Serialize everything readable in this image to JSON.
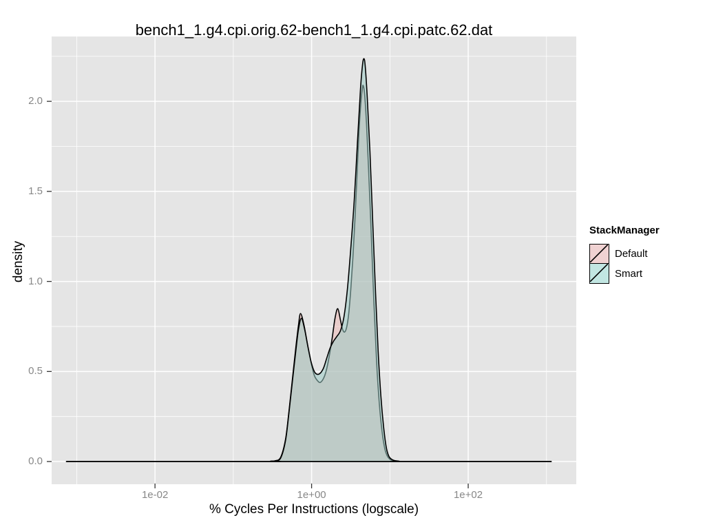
{
  "chart_data": {
    "type": "area",
    "title": "bench1_1.g4.cpi.orig.62-bench1_1.g4.cpi.patc.62.dat",
    "xlabel": "% Cycles Per Instructions (logscale)",
    "ylabel": "density",
    "x_scale": "log10",
    "xlim_log10": [
      -3.32,
      3.38
    ],
    "ylim": [
      -0.126,
      2.36
    ],
    "grid": true,
    "panel_background": "#E5E5E5",
    "grid_color": "#FFFFFF",
    "axis_text_color": "#878787",
    "tick_mark_color": "#333333",
    "x_major_ticks": [
      {
        "value": 0.01,
        "label": "1e-02"
      },
      {
        "value": 1,
        "label": "1e+00"
      },
      {
        "value": 100,
        "label": "1e+02"
      }
    ],
    "x_minor_ticks": [
      0.001,
      0.1,
      10,
      1000
    ],
    "y_major_ticks": [
      {
        "value": 0,
        "label": "0.0"
      },
      {
        "value": 0.5,
        "label": "0.5"
      },
      {
        "value": 1,
        "label": "1.0"
      },
      {
        "value": 1.5,
        "label": "1.5"
      },
      {
        "value": 2,
        "label": "2.0"
      }
    ],
    "y_minor_ticks": [
      0.25,
      0.75,
      1.25,
      1.75,
      2.25
    ],
    "legend": {
      "title": "StackManager",
      "position": "right",
      "entries": [
        {
          "label": "Default",
          "key_fill": "#F0D2D2"
        },
        {
          "label": "Smart",
          "key_fill": "#C2E6E2"
        }
      ]
    },
    "series": [
      {
        "name": "Default",
        "fill": "#EDB5B1",
        "fill_opacity": 0.5,
        "stroke": "#000000",
        "points": [
          [
            0.00074,
            0
          ],
          [
            0.25,
            0
          ],
          [
            0.3,
            0.002
          ],
          [
            0.342,
            0.004
          ],
          [
            0.402,
            0.023
          ],
          [
            0.464,
            0.122
          ],
          [
            0.513,
            0.275
          ],
          [
            0.567,
            0.451
          ],
          [
            0.628,
            0.631
          ],
          [
            0.68,
            0.757
          ],
          [
            0.723,
            0.822
          ],
          [
            0.8,
            0.757
          ],
          [
            0.886,
            0.65
          ],
          [
            0.98,
            0.554
          ],
          [
            1.084,
            0.478
          ],
          [
            1.2,
            0.447
          ],
          [
            1.301,
            0.44
          ],
          [
            1.44,
            0.467
          ],
          [
            1.561,
            0.516
          ],
          [
            1.693,
            0.593
          ],
          [
            1.836,
            0.688
          ],
          [
            1.99,
            0.795
          ],
          [
            2.158,
            0.849
          ],
          [
            2.34,
            0.784
          ],
          [
            2.486,
            0.734
          ],
          [
            2.641,
            0.719
          ],
          [
            2.806,
            0.746
          ],
          [
            2.981,
            0.822
          ],
          [
            3.167,
            0.956
          ],
          [
            3.365,
            1.128
          ],
          [
            3.575,
            1.338
          ],
          [
            3.798,
            1.587
          ],
          [
            4.035,
            1.835
          ],
          [
            4.287,
            2.008
          ],
          [
            4.461,
            2.073
          ],
          [
            4.552,
            2.088
          ],
          [
            4.738,
            2.046
          ],
          [
            5.03,
            1.874
          ],
          [
            5.34,
            1.625
          ],
          [
            5.777,
            1.262
          ],
          [
            6.25,
            0.88
          ],
          [
            6.762,
            0.554
          ],
          [
            7.316,
            0.325
          ],
          [
            7.915,
            0.172
          ],
          [
            8.563,
            0.076
          ],
          [
            9.264,
            0.031
          ],
          [
            10.41,
            0.008
          ],
          [
            12.26,
            0.002
          ],
          [
            14.5,
            0
          ],
          [
            1148,
            0
          ]
        ]
      },
      {
        "name": "Smart",
        "fill": "#9BCBC5",
        "fill_opacity": 0.55,
        "stroke": "#000000",
        "points": [
          [
            0.00074,
            0
          ],
          [
            0.25,
            0
          ],
          [
            0.3,
            0.002
          ],
          [
            0.342,
            0.004
          ],
          [
            0.402,
            0.019
          ],
          [
            0.464,
            0.115
          ],
          [
            0.513,
            0.268
          ],
          [
            0.567,
            0.44
          ],
          [
            0.628,
            0.612
          ],
          [
            0.68,
            0.734
          ],
          [
            0.74,
            0.795
          ],
          [
            0.815,
            0.734
          ],
          [
            0.904,
            0.631
          ],
          [
            1.0,
            0.543
          ],
          [
            1.107,
            0.493
          ],
          [
            1.249,
            0.486
          ],
          [
            1.41,
            0.516
          ],
          [
            1.561,
            0.574
          ],
          [
            1.727,
            0.631
          ],
          [
            1.911,
            0.669
          ],
          [
            2.114,
            0.696
          ],
          [
            2.34,
            0.727
          ],
          [
            2.589,
            0.803
          ],
          [
            2.864,
            0.956
          ],
          [
            3.167,
            1.185
          ],
          [
            3.506,
            1.453
          ],
          [
            3.879,
            1.797
          ],
          [
            4.206,
            2.065
          ],
          [
            4.461,
            2.199
          ],
          [
            4.646,
            2.237
          ],
          [
            4.833,
            2.199
          ],
          [
            5.13,
            2.027
          ],
          [
            5.561,
            1.721
          ],
          [
            6.027,
            1.338
          ],
          [
            6.532,
            0.956
          ],
          [
            7.08,
            0.612
          ],
          [
            7.673,
            0.363
          ],
          [
            8.316,
            0.191
          ],
          [
            9.013,
            0.076
          ],
          [
            9.768,
            0.027
          ],
          [
            11.0,
            0.008
          ],
          [
            13.1,
            0.002
          ],
          [
            15.5,
            0
          ],
          [
            1148,
            0
          ]
        ]
      }
    ]
  }
}
